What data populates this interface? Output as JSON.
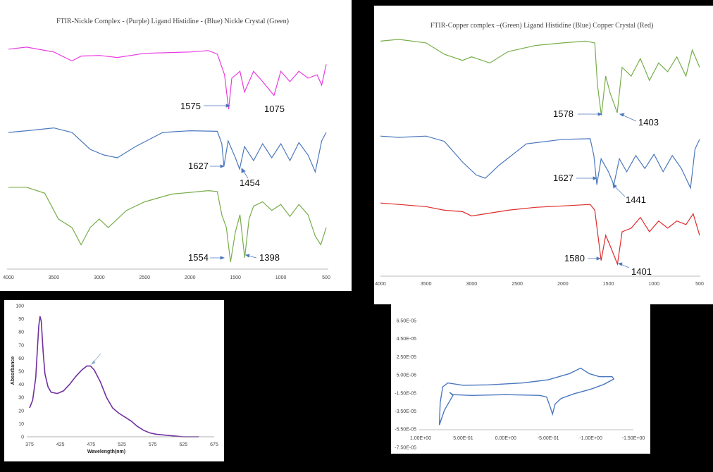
{
  "chart_data": [
    {
      "id": "ftir-nickel",
      "type": "line",
      "title": "FTIR-Nickle Complex - (Purple) Ligand Histidine - (Blue) Nickle Crystal (Green)",
      "xlabel": "",
      "ylabel": "",
      "xlim": [
        4000,
        500
      ],
      "x_ticks": [
        "4000",
        "3500",
        "3000",
        "2500",
        "2000",
        "1500",
        "1000",
        "500"
      ],
      "grid": false,
      "series": [
        {
          "color": "#e83ce0",
          "points": [
            [
              4000,
              0.92
            ],
            [
              3800,
              0.95
            ],
            [
              3500,
              0.88
            ],
            [
              3300,
              0.75
            ],
            [
              3200,
              0.82
            ],
            [
              3000,
              0.83
            ],
            [
              2800,
              0.8
            ],
            [
              2500,
              0.86
            ],
            [
              2000,
              0.88
            ],
            [
              1800,
              0.9
            ],
            [
              1700,
              0.85
            ],
            [
              1620,
              0.55
            ],
            [
              1575,
              0.05
            ],
            [
              1540,
              0.5
            ],
            [
              1450,
              0.6
            ],
            [
              1400,
              0.3
            ],
            [
              1300,
              0.6
            ],
            [
              1200,
              0.45
            ],
            [
              1075,
              0.25
            ],
            [
              1000,
              0.6
            ],
            [
              900,
              0.45
            ],
            [
              800,
              0.6
            ],
            [
              700,
              0.5
            ],
            [
              600,
              0.55
            ],
            [
              550,
              0.4
            ],
            [
              500,
              0.7
            ]
          ]
        },
        {
          "color": "#4a78be",
          "points": [
            [
              4000,
              0.8
            ],
            [
              3800,
              0.83
            ],
            [
              3500,
              0.88
            ],
            [
              3300,
              0.8
            ],
            [
              3100,
              0.5
            ],
            [
              2950,
              0.4
            ],
            [
              2800,
              0.35
            ],
            [
              2600,
              0.55
            ],
            [
              2300,
              0.8
            ],
            [
              2000,
              0.83
            ],
            [
              1700,
              0.82
            ],
            [
              1650,
              0.6
            ],
            [
              1627,
              0.2
            ],
            [
              1580,
              0.65
            ],
            [
              1500,
              0.35
            ],
            [
              1454,
              0.15
            ],
            [
              1400,
              0.55
            ],
            [
              1300,
              0.3
            ],
            [
              1200,
              0.6
            ],
            [
              1100,
              0.35
            ],
            [
              1000,
              0.6
            ],
            [
              900,
              0.3
            ],
            [
              800,
              0.62
            ],
            [
              700,
              0.4
            ],
            [
              620,
              0.1
            ],
            [
              550,
              0.65
            ],
            [
              500,
              0.8
            ]
          ]
        },
        {
          "color": "#78ad4a",
          "points": [
            [
              4000,
              0.92
            ],
            [
              3800,
              0.92
            ],
            [
              3600,
              0.85
            ],
            [
              3450,
              0.55
            ],
            [
              3300,
              0.45
            ],
            [
              3200,
              0.25
            ],
            [
              3100,
              0.45
            ],
            [
              3000,
              0.55
            ],
            [
              2900,
              0.45
            ],
            [
              2700,
              0.65
            ],
            [
              2500,
              0.75
            ],
            [
              2200,
              0.84
            ],
            [
              2000,
              0.86
            ],
            [
              1800,
              0.88
            ],
            [
              1700,
              0.87
            ],
            [
              1650,
              0.6
            ],
            [
              1600,
              0.45
            ],
            [
              1554,
              0.05
            ],
            [
              1500,
              0.4
            ],
            [
              1450,
              0.6
            ],
            [
              1398,
              0.1
            ],
            [
              1350,
              0.55
            ],
            [
              1300,
              0.7
            ],
            [
              1200,
              0.75
            ],
            [
              1100,
              0.65
            ],
            [
              1000,
              0.72
            ],
            [
              900,
              0.58
            ],
            [
              800,
              0.72
            ],
            [
              700,
              0.6
            ],
            [
              620,
              0.35
            ],
            [
              560,
              0.25
            ],
            [
              500,
              0.45
            ]
          ]
        }
      ],
      "annotations": [
        "1575",
        "1075",
        "1627",
        "1454",
        "1554",
        "1398"
      ]
    },
    {
      "id": "ftir-copper",
      "type": "line",
      "title": "FTIR-Copper complex –(Green) Ligand Histidine (Blue) Copper Crystal (Red)",
      "xlabel": "",
      "ylabel": "",
      "xlim": [
        4000,
        500
      ],
      "x_ticks": [
        "4000",
        "3500",
        "3000",
        "2500",
        "2000",
        "1500",
        "1000",
        "500"
      ],
      "grid": false,
      "series": [
        {
          "color": "#78ad4a",
          "points": [
            [
              4000,
              0.9
            ],
            [
              3800,
              0.92
            ],
            [
              3500,
              0.88
            ],
            [
              3300,
              0.75
            ],
            [
              3100,
              0.68
            ],
            [
              3000,
              0.72
            ],
            [
              2800,
              0.65
            ],
            [
              2600,
              0.78
            ],
            [
              2300,
              0.85
            ],
            [
              2000,
              0.88
            ],
            [
              1750,
              0.9
            ],
            [
              1650,
              0.88
            ],
            [
              1620,
              0.4
            ],
            [
              1578,
              0.05
            ],
            [
              1530,
              0.5
            ],
            [
              1480,
              0.3
            ],
            [
              1403,
              0.08
            ],
            [
              1350,
              0.6
            ],
            [
              1250,
              0.5
            ],
            [
              1150,
              0.7
            ],
            [
              1050,
              0.45
            ],
            [
              950,
              0.65
            ],
            [
              850,
              0.55
            ],
            [
              750,
              0.72
            ],
            [
              650,
              0.5
            ],
            [
              580,
              0.8
            ],
            [
              500,
              0.6
            ]
          ]
        },
        {
          "color": "#4a78be",
          "points": [
            [
              4000,
              0.9
            ],
            [
              3800,
              0.88
            ],
            [
              3500,
              0.9
            ],
            [
              3300,
              0.82
            ],
            [
              3100,
              0.5
            ],
            [
              2950,
              0.3
            ],
            [
              2850,
              0.25
            ],
            [
              2700,
              0.45
            ],
            [
              2400,
              0.78
            ],
            [
              2000,
              0.85
            ],
            [
              1700,
              0.86
            ],
            [
              1660,
              0.6
            ],
            [
              1627,
              0.15
            ],
            [
              1580,
              0.55
            ],
            [
              1500,
              0.35
            ],
            [
              1441,
              0.15
            ],
            [
              1380,
              0.55
            ],
            [
              1300,
              0.35
            ],
            [
              1200,
              0.6
            ],
            [
              1100,
              0.4
            ],
            [
              1000,
              0.62
            ],
            [
              900,
              0.35
            ],
            [
              800,
              0.6
            ],
            [
              700,
              0.4
            ],
            [
              600,
              0.1
            ],
            [
              550,
              0.7
            ],
            [
              500,
              0.85
            ]
          ]
        },
        {
          "color": "#de2b2b",
          "points": [
            [
              4000,
              0.9
            ],
            [
              3800,
              0.88
            ],
            [
              3500,
              0.85
            ],
            [
              3300,
              0.8
            ],
            [
              3100,
              0.78
            ],
            [
              3000,
              0.72
            ],
            [
              2800,
              0.76
            ],
            [
              2600,
              0.8
            ],
            [
              2300,
              0.84
            ],
            [
              2000,
              0.86
            ],
            [
              1700,
              0.88
            ],
            [
              1650,
              0.8
            ],
            [
              1580,
              0.1
            ],
            [
              1530,
              0.45
            ],
            [
              1480,
              0.3
            ],
            [
              1401,
              0.05
            ],
            [
              1350,
              0.5
            ],
            [
              1250,
              0.55
            ],
            [
              1150,
              0.7
            ],
            [
              1050,
              0.5
            ],
            [
              950,
              0.65
            ],
            [
              850,
              0.55
            ],
            [
              750,
              0.65
            ],
            [
              650,
              0.6
            ],
            [
              570,
              0.75
            ],
            [
              500,
              0.45
            ]
          ]
        }
      ],
      "annotations": [
        "1578",
        "1403",
        "1627",
        "1441",
        "1580",
        "1401"
      ]
    },
    {
      "id": "uv-vis",
      "type": "line",
      "title": "",
      "xlabel": "Wavelength(nm)",
      "ylabel": "Absorbance",
      "xlim": [
        375,
        675
      ],
      "ylim": [
        0,
        100
      ],
      "x_ticks": [
        "375",
        "425",
        "475",
        "525",
        "575",
        "625",
        "675"
      ],
      "y_ticks": [
        "0",
        "10",
        "20",
        "30",
        "40",
        "50",
        "60",
        "70",
        "80",
        "90",
        "100"
      ],
      "grid": false,
      "series": [
        {
          "color": "#7030a0",
          "points": [
            [
              375,
              22
            ],
            [
              380,
              28
            ],
            [
              385,
              45
            ],
            [
              388,
              70
            ],
            [
              390,
              85
            ],
            [
              392,
              92
            ],
            [
              394,
              88
            ],
            [
              397,
              65
            ],
            [
              400,
              48
            ],
            [
              405,
              38
            ],
            [
              410,
              34
            ],
            [
              420,
              33
            ],
            [
              430,
              35
            ],
            [
              440,
              40
            ],
            [
              450,
              46
            ],
            [
              460,
              51
            ],
            [
              468,
              54
            ],
            [
              474,
              54
            ],
            [
              480,
              51
            ],
            [
              490,
              42
            ],
            [
              500,
              30
            ],
            [
              510,
              22
            ],
            [
              520,
              18
            ],
            [
              530,
              15
            ],
            [
              540,
              12
            ],
            [
              550,
              8
            ],
            [
              560,
              5
            ],
            [
              570,
              3
            ],
            [
              580,
              2
            ],
            [
              600,
              1
            ],
            [
              625,
              0
            ],
            [
              650,
              0
            ]
          ]
        }
      ]
    },
    {
      "id": "cyclic-voltammetry",
      "type": "line",
      "title": "",
      "xlabel": "",
      "ylabel": "",
      "xlim": [
        1.0,
        -1.5
      ],
      "ylim": [
        -5.5e-05,
        8.5e-05
      ],
      "x_ticks": [
        "1.00E+00",
        "5.00E-01",
        "0.00E+00",
        "-5.00E-01",
        "-1.00E+00",
        "-1.50E+00"
      ],
      "y_ticks": [
        "6.50E-05",
        "4.50E-05",
        "2.50E-05",
        "5.00E-06",
        "-1.50E-05",
        "-3.50E-05",
        "-5.50E-05",
        "-7.50E-05"
      ],
      "grid": false,
      "series": [
        {
          "color": "#4a78be",
          "points": [
            [
              0.78,
              -4.9e-05
            ],
            [
              0.77,
              -2e-05
            ],
            [
              0.74,
              0.0
            ],
            [
              0.68,
              5e-06
            ],
            [
              0.5,
              2e-06
            ],
            [
              0.2,
              2.5e-06
            ],
            [
              -0.2,
              5e-06
            ],
            [
              -0.5,
              9e-06
            ],
            [
              -0.75,
              1.7e-05
            ],
            [
              -0.88,
              2.4e-05
            ],
            [
              -0.98,
              1.7e-05
            ],
            [
              -1.1,
              1.3e-05
            ],
            [
              -1.25,
              1.3e-05
            ],
            [
              -1.27,
              1e-05
            ],
            [
              -1.15,
              3e-06
            ],
            [
              -1.0,
              -3e-06
            ],
            [
              -0.8,
              -9e-06
            ],
            [
              -0.65,
              -1.5e-05
            ],
            [
              -0.58,
              -2.2e-05
            ],
            [
              -0.55,
              -3.5e-05
            ],
            [
              -0.52,
              -2.5e-05
            ],
            [
              -0.48,
              -1.3e-05
            ],
            [
              -0.4,
              -1.1e-05
            ],
            [
              0.0,
              -1e-05
            ],
            [
              0.4,
              -1.1e-05
            ],
            [
              0.62,
              -1e-05
            ],
            [
              0.66,
              -7e-06
            ],
            [
              0.62,
              -1.1e-05
            ],
            [
              0.72,
              -3e-05
            ],
            [
              0.78,
              -4.9e-05
            ]
          ]
        }
      ]
    }
  ]
}
